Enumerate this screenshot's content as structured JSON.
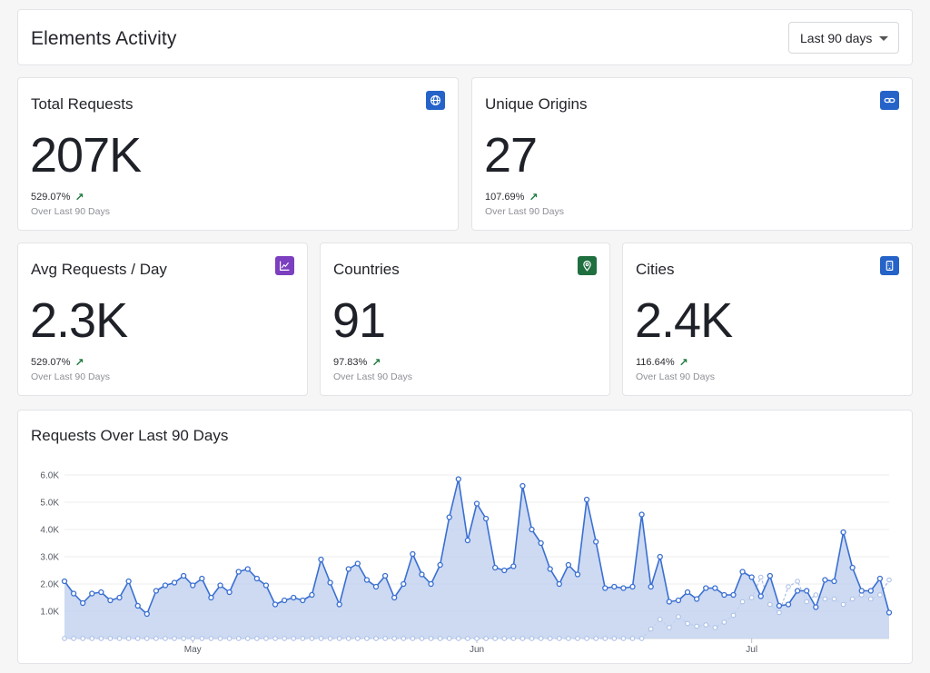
{
  "header": {
    "title": "Elements Activity",
    "range_select": "Last 90 days"
  },
  "stats": [
    {
      "label": "Total Requests",
      "value": "207K",
      "change": "529.07%",
      "sub": "Over Last 90 Days",
      "icon": "globe-icon",
      "icon_color": "#2563c9"
    },
    {
      "label": "Unique Origins",
      "value": "27",
      "change": "107.69%",
      "sub": "Over Last 90 Days",
      "icon": "link-icon",
      "icon_color": "#2563c9"
    },
    {
      "label": "Avg Requests / Day",
      "value": "2.3K",
      "change": "529.07%",
      "sub": "Over Last 90 Days",
      "icon": "line-chart-icon",
      "icon_color": "#7b3fbf"
    },
    {
      "label": "Countries",
      "value": "91",
      "change": "97.83%",
      "sub": "Over Last 90 Days",
      "icon": "map-pin-icon",
      "icon_color": "#1f6f3f"
    },
    {
      "label": "Cities",
      "value": "2.4K",
      "change": "116.64%",
      "sub": "Over Last 90 Days",
      "icon": "building-icon",
      "icon_color": "#2563c9"
    }
  ],
  "chart_title": "Requests Over Last 90 Days",
  "chart_data": {
    "type": "area",
    "title": "Requests Over Last 90 Days",
    "xlabel": "",
    "ylabel": "",
    "ylim": [
      0,
      6300
    ],
    "y_ticks": [
      "1.0K",
      "2.0K",
      "3.0K",
      "4.0K",
      "5.0K",
      "6.0K"
    ],
    "y_tick_values": [
      1000,
      2000,
      3000,
      4000,
      5000,
      6000
    ],
    "x_ticks": [
      {
        "label": "May",
        "index": 14
      },
      {
        "label": "Jun",
        "index": 45
      },
      {
        "label": "Jul",
        "index": 75
      }
    ],
    "grid": true,
    "series": [
      {
        "name": "",
        "color": "#3a6fd1",
        "fill": "#c4d4f0",
        "values": [
          2100,
          1650,
          1300,
          1650,
          1700,
          1400,
          1500,
          2100,
          1200,
          900,
          1750,
          1950,
          2050,
          2300,
          1950,
          2200,
          1500,
          1950,
          1700,
          2450,
          2550,
          2200,
          1950,
          1250,
          1400,
          1500,
          1400,
          1600,
          2900,
          2050,
          1250,
          2550,
          2750,
          2150,
          1900,
          2300,
          1500,
          2000,
          3100,
          2350,
          2000,
          2700,
          4450,
          5850,
          3600,
          4950,
          4400,
          2600,
          2500,
          2650,
          5600,
          4000,
          3500,
          2550,
          2000,
          2700,
          2350,
          5100,
          3550,
          1850,
          1900,
          1850,
          1900,
          4550,
          1900,
          3000,
          1350,
          1400,
          1700,
          1450,
          1850,
          1850,
          1600,
          1600,
          2450,
          2250,
          1550,
          2300,
          1200,
          1250,
          1750,
          1750,
          1150,
          2150,
          2100,
          3900,
          2600,
          1750,
          1750,
          2200,
          950
        ]
      },
      {
        "name": "",
        "color": "#a8bde6",
        "values": [
          0,
          0,
          0,
          0,
          0,
          0,
          0,
          0,
          0,
          0,
          0,
          0,
          0,
          0,
          0,
          0,
          0,
          0,
          0,
          0,
          0,
          0,
          0,
          0,
          0,
          0,
          0,
          0,
          0,
          0,
          0,
          0,
          0,
          0,
          0,
          0,
          0,
          0,
          0,
          0,
          0,
          0,
          0,
          0,
          0,
          0,
          0,
          0,
          0,
          0,
          0,
          0,
          0,
          0,
          0,
          0,
          0,
          0,
          0,
          0,
          0,
          0,
          0,
          0,
          350,
          700,
          400,
          800,
          550,
          450,
          500,
          400,
          600,
          850,
          1350,
          1500,
          2250,
          1250,
          950,
          1900,
          2100,
          1350,
          1600,
          1450,
          1450,
          1250,
          1450,
          1600,
          1450,
          1600,
          2150
        ]
      }
    ]
  }
}
